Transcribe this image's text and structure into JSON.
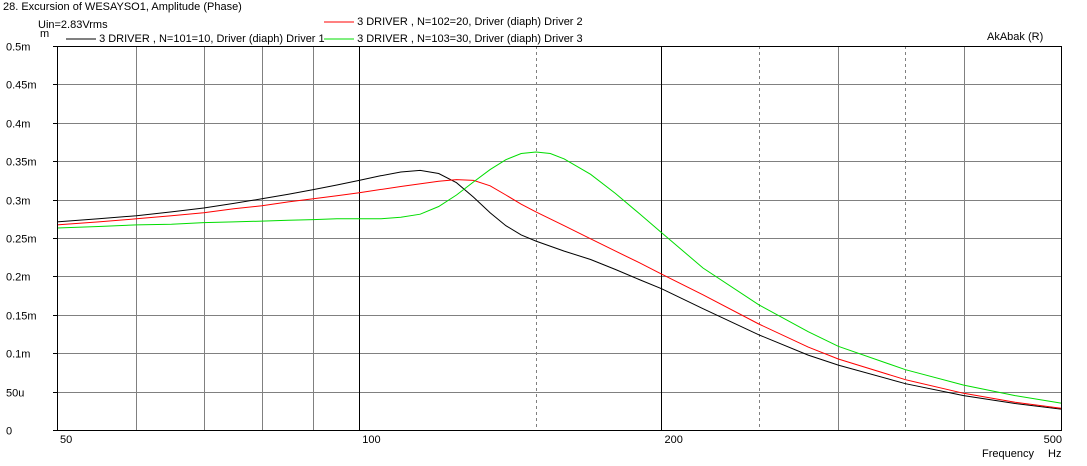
{
  "header": {
    "title": "28. Excursion of WESAYSO1, Amplitude (Phase)",
    "subtitle": "Uin=2.83Vrms",
    "yunit": "m",
    "software": "AkAbak (R)",
    "xunit_label": "Frequency",
    "xunit": "Hz"
  },
  "legend": [
    {
      "label": "3 DRIVER  , N=101=10, Driver (diaph) Driver 1",
      "color": "#000000"
    },
    {
      "label": "3 DRIVER  , N=102=20, Driver (diaph) Driver 2",
      "color": "#ff0000"
    },
    {
      "label": "3 DRIVER  , N=103=30, Driver (diaph) Driver 3",
      "color": "#00dd00"
    }
  ],
  "chart_data": {
    "type": "line",
    "title": "28. Excursion of WESAYSO1, Amplitude (Phase)",
    "subtitle": "Uin=2.83Vrms",
    "xlabel": "Frequency",
    "xunit": "Hz",
    "ylabel": "m",
    "xscale": "log",
    "xlim": [
      50,
      500
    ],
    "ylim": [
      0,
      0.0005
    ],
    "x_tick_labels": [
      {
        "value": 50,
        "label": "50"
      },
      {
        "value": 100,
        "label": "100"
      },
      {
        "value": 200,
        "label": "200"
      },
      {
        "value": 500,
        "label": "500"
      }
    ],
    "x_gridlines": [
      60,
      70,
      80,
      90,
      100,
      200,
      300,
      400
    ],
    "x_dashed_gridlines": [
      150,
      250,
      350
    ],
    "y_ticks": [
      {
        "value": 0,
        "label": "0"
      },
      {
        "value": 5e-05,
        "label": "50u"
      },
      {
        "value": 0.0001,
        "label": "0.1m"
      },
      {
        "value": 0.00015,
        "label": "0.15m"
      },
      {
        "value": 0.0002,
        "label": "0.2m"
      },
      {
        "value": 0.00025,
        "label": "0.25m"
      },
      {
        "value": 0.0003,
        "label": "0.3m"
      },
      {
        "value": 0.00035,
        "label": "0.35m"
      },
      {
        "value": 0.0004,
        "label": "0.4m"
      },
      {
        "value": 0.00045,
        "label": "0.45m"
      },
      {
        "value": 0.0005,
        "label": "0.5m"
      }
    ],
    "grid": true,
    "legend_position": "top",
    "series": [
      {
        "name": "3 DRIVER  , N=101=10, Driver (diaph) Driver 1",
        "color": "#000000",
        "x": [
          50,
          55,
          60,
          65,
          70,
          75,
          80,
          85,
          90,
          95,
          100,
          105,
          110,
          115,
          120,
          125,
          130,
          135,
          140,
          145,
          150,
          160,
          170,
          180,
          190,
          200,
          220,
          250,
          280,
          300,
          350,
          400,
          450,
          500
        ],
        "y": [
          0.000271,
          0.000275,
          0.000279,
          0.000284,
          0.000289,
          0.000295,
          0.000301,
          0.000307,
          0.000313,
          0.000319,
          0.000325,
          0.000331,
          0.000336,
          0.000338,
          0.000334,
          0.000322,
          0.000303,
          0.000283,
          0.000266,
          0.000254,
          0.000246,
          0.000233,
          0.000222,
          0.000209,
          0.000196,
          0.000184,
          0.000158,
          0.000124,
          9.75e-05,
          8.45e-05,
          6.03e-05,
          4.48e-05,
          3.45e-05,
          2.72e-05
        ]
      },
      {
        "name": "3 DRIVER  , N=102=20, Driver (diaph) Driver 2",
        "color": "#ff0000",
        "x": [
          50,
          55,
          60,
          65,
          70,
          75,
          80,
          85,
          90,
          95,
          100,
          110,
          120,
          125,
          130,
          135,
          140,
          145,
          150,
          160,
          170,
          180,
          190,
          200,
          220,
          250,
          280,
          300,
          350,
          400,
          450,
          500
        ],
        "y": [
          0.000267,
          0.000271,
          0.000275,
          0.000279,
          0.000283,
          0.000288,
          0.000292,
          0.000297,
          0.000301,
          0.000305,
          0.000309,
          0.000317,
          0.000324,
          0.000326,
          0.000325,
          0.000318,
          0.000306,
          0.000294,
          0.000284,
          0.000266,
          0.000249,
          0.000233,
          0.000218,
          0.000203,
          0.000176,
          0.000138,
          0.000108,
          9.25e-05,
          6.55e-05,
          4.78e-05,
          3.62e-05,
          2.83e-05
        ]
      },
      {
        "name": "3 DRIVER  , N=103=30, Driver (diaph) Driver 3",
        "color": "#00dd00",
        "x": [
          50,
          55,
          60,
          65,
          70,
          75,
          80,
          85,
          90,
          95,
          100,
          105,
          110,
          115,
          120,
          125,
          130,
          135,
          140,
          145,
          150,
          155,
          160,
          170,
          180,
          190,
          200,
          220,
          250,
          280,
          300,
          350,
          400,
          450,
          500
        ],
        "y": [
          0.000263,
          0.000265,
          0.000267,
          0.000268,
          0.00027,
          0.000271,
          0.000272,
          0.000273,
          0.000274,
          0.000275,
          0.000275,
          0.000275,
          0.000277,
          0.000281,
          0.000291,
          0.000306,
          0.000323,
          0.000339,
          0.000352,
          0.00036,
          0.000362,
          0.00036,
          0.000353,
          0.000333,
          0.000308,
          0.000282,
          0.000257,
          0.000211,
          0.000163,
          0.000128,
          0.000109,
          7.85e-05,
          5.85e-05,
          4.48e-05,
          3.5e-05
        ]
      }
    ]
  }
}
